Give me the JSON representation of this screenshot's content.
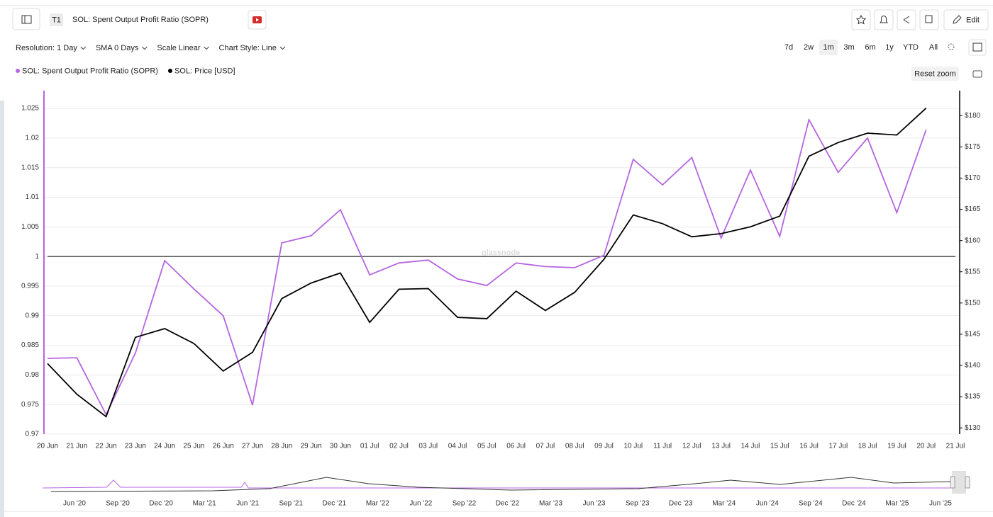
{
  "header": {
    "badge": "T1",
    "title": "SOL: Spent Output Profit Ratio (SOPR)",
    "edit": "Edit"
  },
  "toolbar": {
    "options": [
      "Resolution: 1 Day",
      "SMA 0 Days",
      "Scale Linear",
      "Chart Style: Line"
    ],
    "ranges": [
      "7d",
      "2w",
      "1m",
      "3m",
      "6m",
      "1y",
      "YTD",
      "All"
    ],
    "selected_range": 2,
    "reset_zoom": "Reset zoom"
  },
  "watermark": "glassnode",
  "chart_data": {
    "type": "line",
    "categories": [
      "20 Jun",
      "21 Jun",
      "22 Jun",
      "23 Jun",
      "24 Jun",
      "25 Jun",
      "26 Jun",
      "27 Jun",
      "28 Jun",
      "29 Jun",
      "30 Jun",
      "01 Jul",
      "02 Jul",
      "03 Jul",
      "04 Jul",
      "05 Jul",
      "06 Jul",
      "07 Jul",
      "08 Jul",
      "09 Jul",
      "10 Jul",
      "11 Jul",
      "12 Jul",
      "13 Jul",
      "14 Jul",
      "15 Jul",
      "16 Jul",
      "17 Jul",
      "18 Jul",
      "19 Jul",
      "20 Jul",
      "21 Jul"
    ],
    "series": [
      {
        "name": "SOL: Spent Output Profit Ratio (SOPR)",
        "color": "#b566e0",
        "values": [
          0.9828,
          0.9829,
          0.9733,
          0.9837,
          0.9993,
          0.9945,
          0.99,
          0.9749,
          1.0023,
          1.0035,
          1.0079,
          0.9969,
          0.9989,
          0.9994,
          0.9962,
          0.9951,
          0.9989,
          0.9983,
          0.9981,
          1.0002,
          1.0164,
          1.0121,
          1.0167,
          1.0031,
          1.0146,
          1.0034,
          1.0231,
          1.0142,
          1.02,
          1.0074,
          1.0214,
          null
        ]
      },
      {
        "name": "SOL: Price [USD]",
        "color": "#000000",
        "axis": "y2",
        "values": [
          140.3,
          135.4,
          131.8,
          144.5,
          145.9,
          143.5,
          139.1,
          142.1,
          150.7,
          153.2,
          154.8,
          146.9,
          152.2,
          152.3,
          147.7,
          147.5,
          151.9,
          148.8,
          151.7,
          157.0,
          164.1,
          162.7,
          160.6,
          161.1,
          162.2,
          163.9,
          173.5,
          175.7,
          177.2,
          176.9,
          181.2,
          null
        ]
      }
    ],
    "ylim": [
      0.97,
      1.028
    ],
    "yticks": [
      0.97,
      0.975,
      0.98,
      0.985,
      0.99,
      0.995,
      1,
      1.005,
      1.01,
      1.015,
      1.02,
      1.025
    ],
    "y2lim": [
      129,
      184
    ],
    "y2ticks": [
      {
        "value": 130,
        "label": "$130"
      },
      {
        "value": 135,
        "label": "$135"
      },
      {
        "value": 140,
        "label": "$140"
      },
      {
        "value": 145,
        "label": "$145"
      },
      {
        "value": 150,
        "label": "$150"
      },
      {
        "value": 155,
        "label": "$155"
      },
      {
        "value": 160,
        "label": "$160"
      },
      {
        "value": 165,
        "label": "$165"
      },
      {
        "value": 170,
        "label": "$170"
      },
      {
        "value": 175,
        "label": "$175"
      },
      {
        "value": 180,
        "label": "$180"
      }
    ],
    "hline": 1,
    "grid": true
  },
  "navigator": {
    "labels": [
      "Jun '20",
      "Sep '20",
      "Dec '20",
      "Mar '21",
      "Jun '21",
      "Sep '21",
      "Dec '21",
      "Mar '22",
      "Jun '22",
      "Sep '22",
      "Dec '22",
      "Mar '23",
      "Jun '23",
      "Sep '23",
      "Dec '23",
      "Mar '24",
      "Jun '24",
      "Sep '24",
      "Dec '24",
      "Mar '25",
      "Jun '25"
    ]
  }
}
